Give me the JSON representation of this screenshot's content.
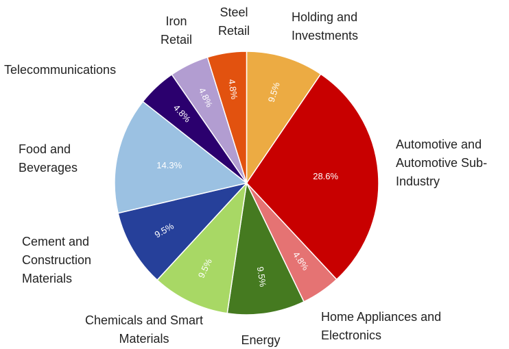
{
  "chart_data": {
    "type": "pie",
    "categories": [
      "Holding and Investments",
      "Automotive and Automotive Sub-Industry",
      "Home Appliances and Electronics",
      "Energy",
      "Chemicals and Smart Materials",
      "Cement and Construction Materials",
      "Food and Beverages",
      "Telecommunications",
      "Iron Retail",
      "Steel Retail"
    ],
    "values": [
      9.5,
      28.6,
      4.8,
      9.5,
      9.5,
      9.5,
      14.3,
      4.8,
      4.8,
      4.8
    ],
    "value_labels": [
      "9.5%",
      "28.6%",
      "4.8%",
      "9.5%",
      "9.5%",
      "9.5%",
      "14.3%",
      "4.8%",
      "4.8%",
      "4.8%"
    ],
    "colors": [
      "#ecab43",
      "#c80000",
      "#e57373",
      "#457a20",
      "#a8d865",
      "#26409a",
      "#9bc1e2",
      "#2b006e",
      "#b29dd1",
      "#e2520f"
    ]
  }
}
